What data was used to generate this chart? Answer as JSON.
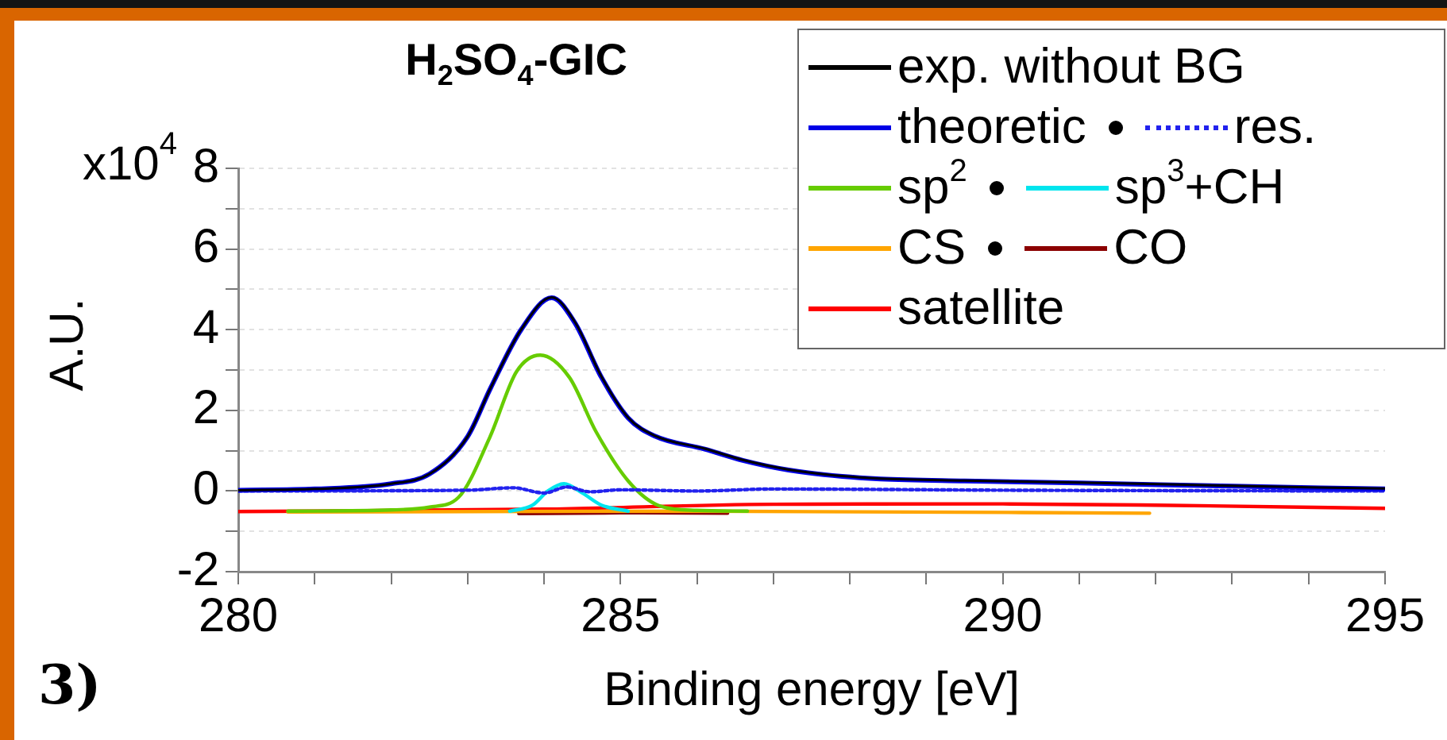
{
  "chart_data": {
    "type": "line",
    "title": "H$_{2}$SO$_{4}$-GIC",
    "xlabel": "Binding energy [eV]",
    "ylabel": "A.U.",
    "annotations": [
      "3)",
      "x10$^{4}$"
    ],
    "xlim": [
      280,
      295
    ],
    "xticks": [
      280,
      {
        "value": 281,
        "label": null
      },
      {
        "value": 282,
        "label": null
      },
      {
        "value": 283,
        "label": null
      },
      {
        "value": 284,
        "label": null
      },
      285,
      {
        "value": 286,
        "label": null
      },
      {
        "value": 287,
        "label": null
      },
      {
        "value": 288,
        "label": null
      },
      {
        "value": 289,
        "label": null
      },
      290,
      {
        "value": 291,
        "label": null
      },
      {
        "value": 292,
        "label": null
      },
      {
        "value": 293,
        "label": null
      },
      {
        "value": 294,
        "label": null
      },
      295
    ],
    "ylim": [
      -2,
      8
    ],
    "yticks": [
      -2,
      {
        "value": -1,
        "label": null
      },
      0,
      {
        "value": 1,
        "label": null
      },
      2,
      {
        "value": 3,
        "label": null
      },
      4,
      {
        "value": 5,
        "label": null
      },
      6,
      {
        "value": 7,
        "label": null
      },
      8
    ],
    "grid": "y",
    "legend": "top right",
    "marker": "none",
    "series": [
      {
        "name": "exp. without BG",
        "color": "#000000",
        "x": [
          280,
          281,
          282,
          282.5,
          283,
          283.3,
          283.7,
          284.1,
          284.4,
          284.75,
          285.1,
          285.45,
          286.1,
          286.6,
          287.2,
          287.9,
          288.4,
          289.5,
          291,
          293,
          295
        ],
        "values": [
          0.02,
          0.05,
          0.18,
          0.42,
          1.35,
          2.55,
          4.0,
          4.8,
          4.2,
          2.84,
          1.82,
          1.37,
          1.05,
          0.77,
          0.53,
          0.37,
          0.31,
          0.26,
          0.21,
          0.13,
          0.06
        ]
      },
      {
        "name": "theoretic",
        "color": "#0000e6",
        "x": [
          280,
          281,
          282,
          282.5,
          283,
          283.3,
          283.7,
          284.1,
          284.4,
          284.75,
          285.1,
          285.45,
          286.1,
          286.6,
          287.2,
          287.9,
          288.4,
          289.5,
          291,
          293,
          295
        ],
        "values": [
          0.02,
          0.05,
          0.18,
          0.42,
          1.35,
          2.55,
          4.0,
          4.79,
          4.18,
          2.82,
          1.81,
          1.36,
          1.04,
          0.76,
          0.52,
          0.36,
          0.3,
          0.25,
          0.2,
          0.12,
          0.05
        ]
      },
      {
        "name": "res.",
        "color": "#2222ee",
        "line_style": "dotted",
        "x": [
          280,
          283,
          283.6,
          284,
          284.3,
          284.6,
          285,
          286,
          287,
          290,
          295
        ],
        "values": [
          0.0,
          0.02,
          0.08,
          -0.05,
          0.1,
          -0.02,
          0.03,
          0.0,
          0.05,
          0.02,
          0.0
        ]
      },
      {
        "name": "sp$^{2}$",
        "color": "#66cc00",
        "x": [
          280.65,
          282,
          282.5,
          282.88,
          283.29,
          283.64,
          283.95,
          284.33,
          284.68,
          285.1,
          285.5,
          286,
          286.66
        ],
        "values": [
          -0.5,
          -0.47,
          -0.4,
          -0.16,
          1.33,
          2.96,
          3.37,
          2.82,
          1.47,
          0.25,
          -0.36,
          -0.48,
          -0.5
        ]
      },
      {
        "name": "sp$^{3}$+CH",
        "color": "#00e5ee",
        "x": [
          283.55,
          283.85,
          284.05,
          284.26,
          284.5,
          284.75,
          285.1
        ],
        "values": [
          -0.5,
          -0.35,
          0.0,
          0.18,
          -0.05,
          -0.35,
          -0.5
        ]
      },
      {
        "name": "CS",
        "color": "#ffa500",
        "x": [
          280.65,
          286,
          291.92
        ],
        "values": [
          -0.52,
          -0.5,
          -0.55
        ]
      },
      {
        "name": "CO",
        "color": "#8b0000",
        "x": [
          283.67,
          285,
          286.4
        ],
        "values": [
          -0.56,
          -0.54,
          -0.55
        ]
      },
      {
        "name": "satellite",
        "color": "#ff0000",
        "x": [
          280,
          284,
          287,
          290,
          292,
          295
        ],
        "values": [
          -0.51,
          -0.45,
          -0.33,
          -0.32,
          -0.35,
          -0.43
        ]
      }
    ]
  }
}
